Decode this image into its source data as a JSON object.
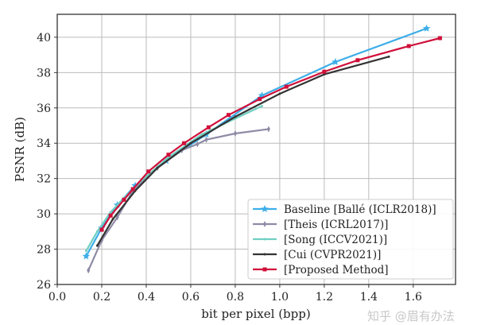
{
  "chart_data": {
    "type": "line",
    "title": "",
    "xlabel": "bit per pixel (bpp)",
    "ylabel": "PSNR (dB)",
    "xlim": [
      0.0,
      1.79
    ],
    "ylim": [
      26,
      41.3
    ],
    "xticks": [
      "0.0",
      "0.2",
      "0.4",
      "0.6",
      "0.8",
      "1.0",
      "1.2",
      "1.4",
      "1.6"
    ],
    "yticks": [
      "26",
      "28",
      "30",
      "32",
      "34",
      "36",
      "38",
      "40"
    ],
    "grid": true,
    "legend_position": "bottom-right",
    "series": [
      {
        "name": "Baseline [Ballé (ICLR2018)]",
        "color": "#3daee9",
        "marker": "star",
        "x": [
          0.13,
          0.2,
          0.27,
          0.35,
          0.49,
          0.67,
          0.92,
          1.25,
          1.66
        ],
        "y": [
          27.6,
          29.2,
          30.5,
          31.6,
          33.0,
          34.5,
          36.7,
          38.6,
          40.5
        ]
      },
      {
        "name": "[Theis (ICRL2017)]",
        "color": "#8e8ba6",
        "marker": "thin_diamond",
        "x": [
          0.14,
          0.2,
          0.27,
          0.34,
          0.45,
          0.56,
          0.63,
          0.67,
          0.8,
          0.95
        ],
        "y": [
          26.8,
          28.5,
          29.8,
          31.3,
          32.6,
          33.6,
          33.95,
          34.2,
          34.55,
          34.8
        ]
      },
      {
        "name": "[Song (ICCV2021)]",
        "color": "#6fcfc2",
        "marker": "point",
        "x": [
          0.13,
          0.18,
          0.24,
          0.3,
          0.38,
          0.5,
          0.65,
          0.8,
          0.92
        ],
        "y": [
          27.9,
          29.0,
          30.1,
          30.9,
          31.9,
          33.2,
          34.5,
          35.4,
          36.1
        ]
      },
      {
        "name": "[Cui (CVPR2021)]",
        "color": "#333333",
        "marker": "point",
        "x": [
          0.18,
          0.25,
          0.35,
          0.45,
          0.6,
          0.8,
          1.0,
          1.2,
          1.49
        ],
        "y": [
          28.2,
          29.7,
          31.3,
          32.6,
          34.0,
          35.5,
          36.8,
          37.9,
          38.9
        ]
      },
      {
        "name": "[Proposed Method]",
        "color": "#d0103a",
        "marker": "square",
        "x": [
          0.2,
          0.24,
          0.3,
          0.34,
          0.41,
          0.5,
          0.57,
          0.68,
          0.77,
          0.91,
          1.03,
          1.2,
          1.35,
          1.58,
          1.72
        ],
        "y": [
          29.1,
          29.9,
          30.8,
          31.4,
          32.4,
          33.35,
          34.0,
          34.9,
          35.6,
          36.5,
          37.2,
          38.05,
          38.7,
          39.5,
          39.95
        ]
      }
    ]
  },
  "watermark": "知乎 @眉有办法"
}
